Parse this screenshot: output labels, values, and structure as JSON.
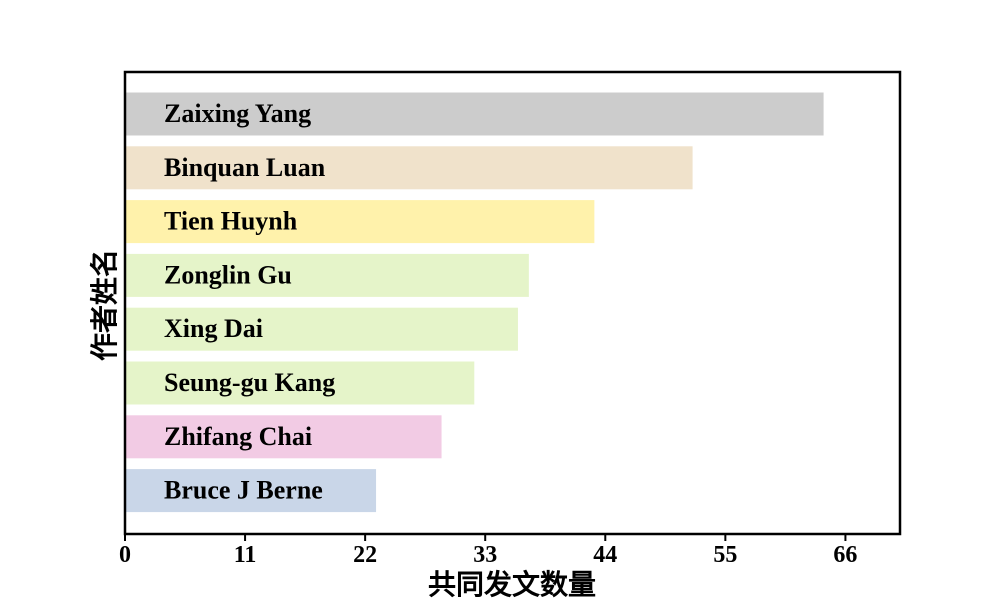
{
  "chart_data": {
    "type": "bar",
    "orientation": "horizontal",
    "xlabel": "共同发文数量",
    "ylabel": "作者姓名",
    "xlim": [
      0,
      71
    ],
    "xticks": [
      "0",
      "11",
      "22",
      "33",
      "44",
      "55",
      "66"
    ],
    "grid": false,
    "categories": [
      "Zaixing Yang",
      "Binquan Luan",
      "Tien Huynh",
      "Zonglin Gu",
      "Xing Dai",
      "Seung-gu Kang",
      "Zhifang Chai",
      "Bruce J Berne"
    ],
    "values": [
      64,
      52,
      43,
      37,
      36,
      32,
      29,
      23
    ],
    "colors": [
      "#cccccc",
      "#f0e2cb",
      "#fff2ab",
      "#e5f4c9",
      "#e5f4c9",
      "#e5f4c9",
      "#f2cbe4",
      "#c9d6e8"
    ]
  }
}
